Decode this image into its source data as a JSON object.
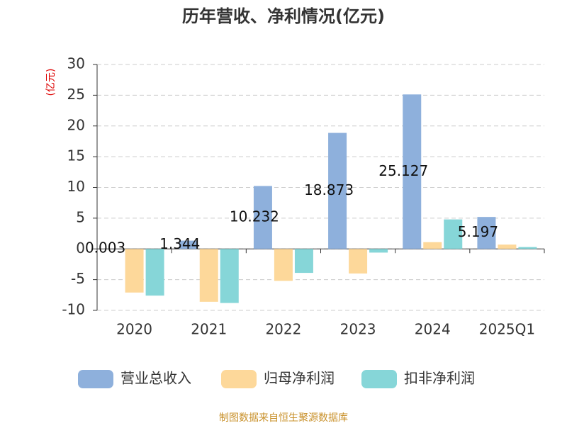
{
  "chart_data": {
    "type": "bar",
    "title": "历年营收、净利情况(亿元)",
    "y_label": "(亿元)",
    "source": "制图数据来自恒生聚源数据库",
    "categories": [
      "2020",
      "2021",
      "2022",
      "2023",
      "2024",
      "2025Q1"
    ],
    "series": [
      {
        "name": "营业总收入",
        "color": "#8eb0dc",
        "values": [
          0.003,
          1.344,
          10.232,
          18.873,
          25.127,
          5.197
        ]
      },
      {
        "name": "归母净利润",
        "color": "#fdd89a",
        "values": [
          -7.1,
          -8.6,
          -5.2,
          -4.0,
          1.1,
          0.7
        ]
      },
      {
        "name": "扣非净利润",
        "color": "#86d6d8",
        "values": [
          -7.6,
          -8.8,
          -3.9,
          -0.6,
          4.8,
          0.3
        ]
      }
    ],
    "labeled_series": 0,
    "ylim": [
      -10,
      30
    ],
    "yticks": [
      -10,
      -5,
      0,
      5,
      10,
      15,
      20,
      25,
      30
    ],
    "grid": true
  }
}
